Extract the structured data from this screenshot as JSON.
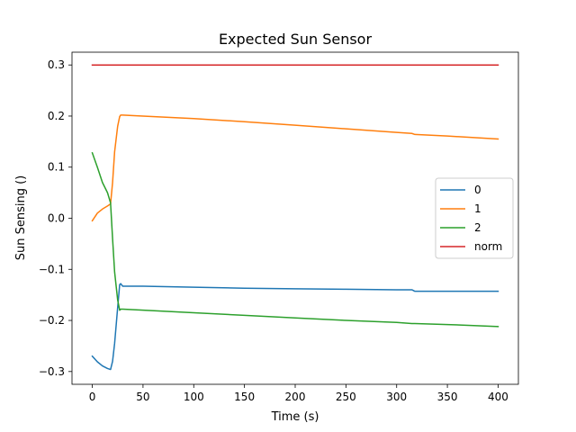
{
  "chart_data": {
    "type": "line",
    "title": "Expected Sun Sensor",
    "xlabel": "Time (s)",
    "ylabel": "Sun Sensing ()",
    "xlim": [
      -20,
      420
    ],
    "ylim": [
      -0.325,
      0.325
    ],
    "xticks": [
      0,
      50,
      100,
      150,
      200,
      250,
      300,
      350,
      400
    ],
    "yticks": [
      -0.3,
      -0.2,
      -0.1,
      0.0,
      0.1,
      0.2,
      0.3
    ],
    "ytick_labels": [
      "−0.3",
      "−0.2",
      "−0.1",
      "0.0",
      "0.1",
      "0.2",
      "0.3"
    ],
    "grid": false,
    "legend_position": "right",
    "series": [
      {
        "name": "0",
        "color": "#1f77b4",
        "x": [
          0,
          5,
          10,
          15,
          18,
          20,
          22,
          25,
          27,
          28,
          30,
          50,
          100,
          150,
          200,
          250,
          300,
          315,
          318,
          350,
          400
        ],
        "y": [
          -0.27,
          -0.281,
          -0.289,
          -0.294,
          -0.296,
          -0.28,
          -0.245,
          -0.175,
          -0.13,
          -0.128,
          -0.133,
          -0.133,
          -0.135,
          -0.137,
          -0.138,
          -0.139,
          -0.14,
          -0.14,
          -0.143,
          -0.143,
          -0.143
        ]
      },
      {
        "name": "1",
        "color": "#ff7f0e",
        "x": [
          0,
          5,
          10,
          15,
          18,
          20,
          22,
          25,
          27,
          28,
          30,
          50,
          100,
          150,
          200,
          250,
          300,
          315,
          318,
          350,
          400
        ],
        "y": [
          -0.005,
          0.01,
          0.018,
          0.024,
          0.028,
          0.07,
          0.13,
          0.18,
          0.199,
          0.202,
          0.202,
          0.2,
          0.195,
          0.189,
          0.182,
          0.175,
          0.168,
          0.166,
          0.164,
          0.161,
          0.155
        ]
      },
      {
        "name": "2",
        "color": "#2ca02c",
        "x": [
          0,
          5,
          10,
          15,
          18,
          20,
          22,
          25,
          27,
          28,
          30,
          50,
          100,
          150,
          200,
          250,
          300,
          315,
          318,
          350,
          400
        ],
        "y": [
          0.128,
          0.1,
          0.07,
          0.05,
          0.03,
          -0.04,
          -0.105,
          -0.16,
          -0.18,
          -0.178,
          -0.178,
          -0.18,
          -0.185,
          -0.19,
          -0.195,
          -0.2,
          -0.204,
          -0.206,
          -0.206,
          -0.208,
          -0.212
        ]
      },
      {
        "name": "norm",
        "color": "#d62728",
        "x": [
          0,
          400
        ],
        "y": [
          0.3,
          0.3
        ]
      }
    ]
  }
}
